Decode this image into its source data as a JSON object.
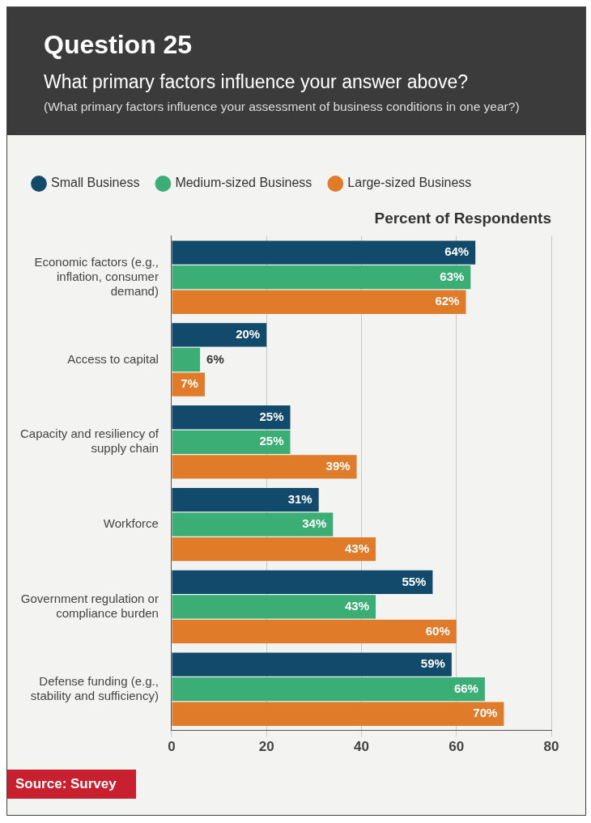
{
  "chart_data": {
    "type": "bar",
    "orientation": "horizontal",
    "title": "Question 25",
    "subtitle": "What primary factors influence your answer above?",
    "xlabel": "Percent of Respondents",
    "categories": [
      "Economic factors (e.g., inflation, consumer demand)",
      "Access to capital",
      "Capacity and resiliency of supply chain",
      "Workforce",
      "Government regulation or compliance burden",
      "Defense funding (e.g., stability and sufficiency)"
    ],
    "series": [
      {
        "name": "Small Business",
        "color": "#124a6b",
        "values": [
          64,
          20,
          25,
          31,
          55,
          59
        ]
      },
      {
        "name": "Medium-sized Business",
        "color": "#3aae74",
        "values": [
          63,
          6,
          25,
          34,
          43,
          66
        ]
      },
      {
        "name": "Large-sized Business",
        "color": "#e07b2a",
        "values": [
          62,
          7,
          39,
          43,
          60,
          70
        ]
      }
    ],
    "value_labels": [
      [
        "64%",
        "20%",
        "25%",
        "31%",
        "55%",
        "59%"
      ],
      [
        "63%",
        "6%",
        "25%",
        "34%",
        "43%",
        "66%"
      ],
      [
        "62%",
        "7%",
        "39%",
        "43%",
        "60%",
        "70%"
      ]
    ],
    "xlim": [
      0,
      80
    ],
    "xticks": [
      0,
      20,
      40,
      60,
      80
    ],
    "grid": "x",
    "legend": "top left",
    "annotations": [
      "(What primary factors influence your assessment of business conditions in one year?)",
      "Source: Survey"
    ]
  }
}
